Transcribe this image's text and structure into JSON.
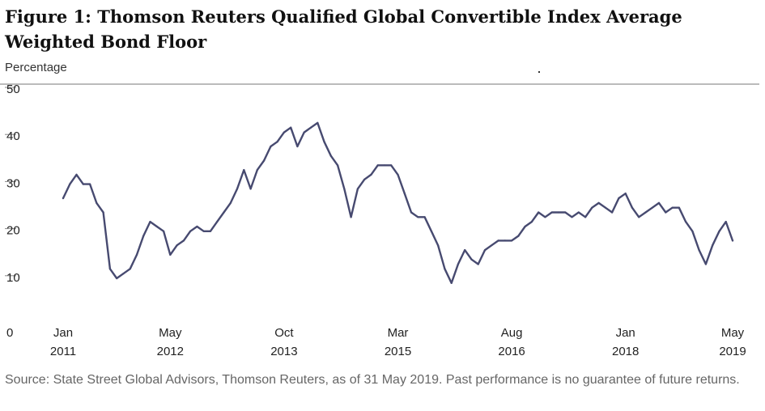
{
  "title": "Figure 1: Thomson Reuters Qualified Global Convertible Index Average Weighted Bond Floor",
  "source": "Source: State Street Global Advisors, Thomson Reuters, as of 31 May 2019. Past performance is no guarantee of future returns.",
  "colors": {
    "line": "#474a70",
    "axis": "#555555",
    "text": "#222222"
  },
  "chart_data": {
    "type": "line",
    "title": "Figure 1: Thomson Reuters Qualified Global Convertible Index Average Weighted Bond Floor",
    "ylabel": "Percentage",
    "xlabel": "",
    "ylim": [
      0,
      50
    ],
    "yticks": [
      0,
      10,
      20,
      30,
      40,
      50
    ],
    "grid": false,
    "xtick_labels": [
      [
        "Jan",
        "2011"
      ],
      [
        "May",
        "2012"
      ],
      [
        "Oct",
        "2013"
      ],
      [
        "Mar",
        "2015"
      ],
      [
        "Aug",
        "2016"
      ],
      [
        "Jan",
        "2018"
      ],
      [
        "May",
        "2019"
      ]
    ],
    "xtick_dates": [
      "2011-01",
      "2012-05",
      "2013-10",
      "2015-03",
      "2016-08",
      "2018-01",
      "2019-05"
    ],
    "series": [
      {
        "name": "",
        "x": [
          "2011-01",
          "2011-02",
          "2011-03",
          "2011-04",
          "2011-05",
          "2011-06",
          "2011-07",
          "2011-08",
          "2011-09",
          "2011-10",
          "2011-11",
          "2011-12",
          "2012-01",
          "2012-02",
          "2012-03",
          "2012-04",
          "2012-05",
          "2012-06",
          "2012-07",
          "2012-08",
          "2012-09",
          "2012-10",
          "2012-11",
          "2012-12",
          "2013-01",
          "2013-02",
          "2013-03",
          "2013-04",
          "2013-05",
          "2013-06",
          "2013-07",
          "2013-08",
          "2013-09",
          "2013-10",
          "2013-11",
          "2013-12",
          "2014-01",
          "2014-02",
          "2014-03",
          "2014-04",
          "2014-05",
          "2014-06",
          "2014-07",
          "2014-08",
          "2014-09",
          "2014-10",
          "2014-11",
          "2014-12",
          "2015-01",
          "2015-02",
          "2015-03",
          "2015-04",
          "2015-05",
          "2015-06",
          "2015-07",
          "2015-08",
          "2015-09",
          "2015-10",
          "2015-11",
          "2015-12",
          "2016-01",
          "2016-02",
          "2016-03",
          "2016-04",
          "2016-05",
          "2016-06",
          "2016-07",
          "2016-08",
          "2016-09",
          "2016-10",
          "2016-11",
          "2016-12",
          "2017-01",
          "2017-02",
          "2017-03",
          "2017-04",
          "2017-05",
          "2017-06",
          "2017-07",
          "2017-08",
          "2017-09",
          "2017-10",
          "2017-11",
          "2017-12",
          "2018-01",
          "2018-02",
          "2018-03",
          "2018-04",
          "2018-05",
          "2018-06",
          "2018-07",
          "2018-08",
          "2018-09",
          "2018-10",
          "2018-11",
          "2018-12",
          "2019-01",
          "2019-02",
          "2019-03",
          "2019-04",
          "2019-05"
        ],
        "values": [
          28,
          31,
          33,
          31,
          31,
          27,
          25,
          13,
          11,
          12,
          13,
          16,
          20,
          23,
          22,
          21,
          16,
          18,
          19,
          21,
          22,
          21,
          21,
          23,
          25,
          27,
          30,
          34,
          30,
          34,
          36,
          39,
          40,
          42,
          43,
          39,
          42,
          43,
          44,
          40,
          37,
          35,
          30,
          24,
          30,
          32,
          33,
          35,
          35,
          35,
          33,
          29,
          25,
          24,
          24,
          21,
          18,
          13,
          10,
          14,
          17,
          15,
          14,
          17,
          18,
          19,
          19,
          19,
          20,
          22,
          23,
          25,
          24,
          25,
          25,
          25,
          24,
          25,
          24,
          26,
          27,
          26,
          25,
          28,
          29,
          26,
          24,
          25,
          26,
          27,
          25,
          26,
          26,
          23,
          21,
          17,
          14,
          18,
          21,
          23,
          19
        ]
      }
    ]
  }
}
